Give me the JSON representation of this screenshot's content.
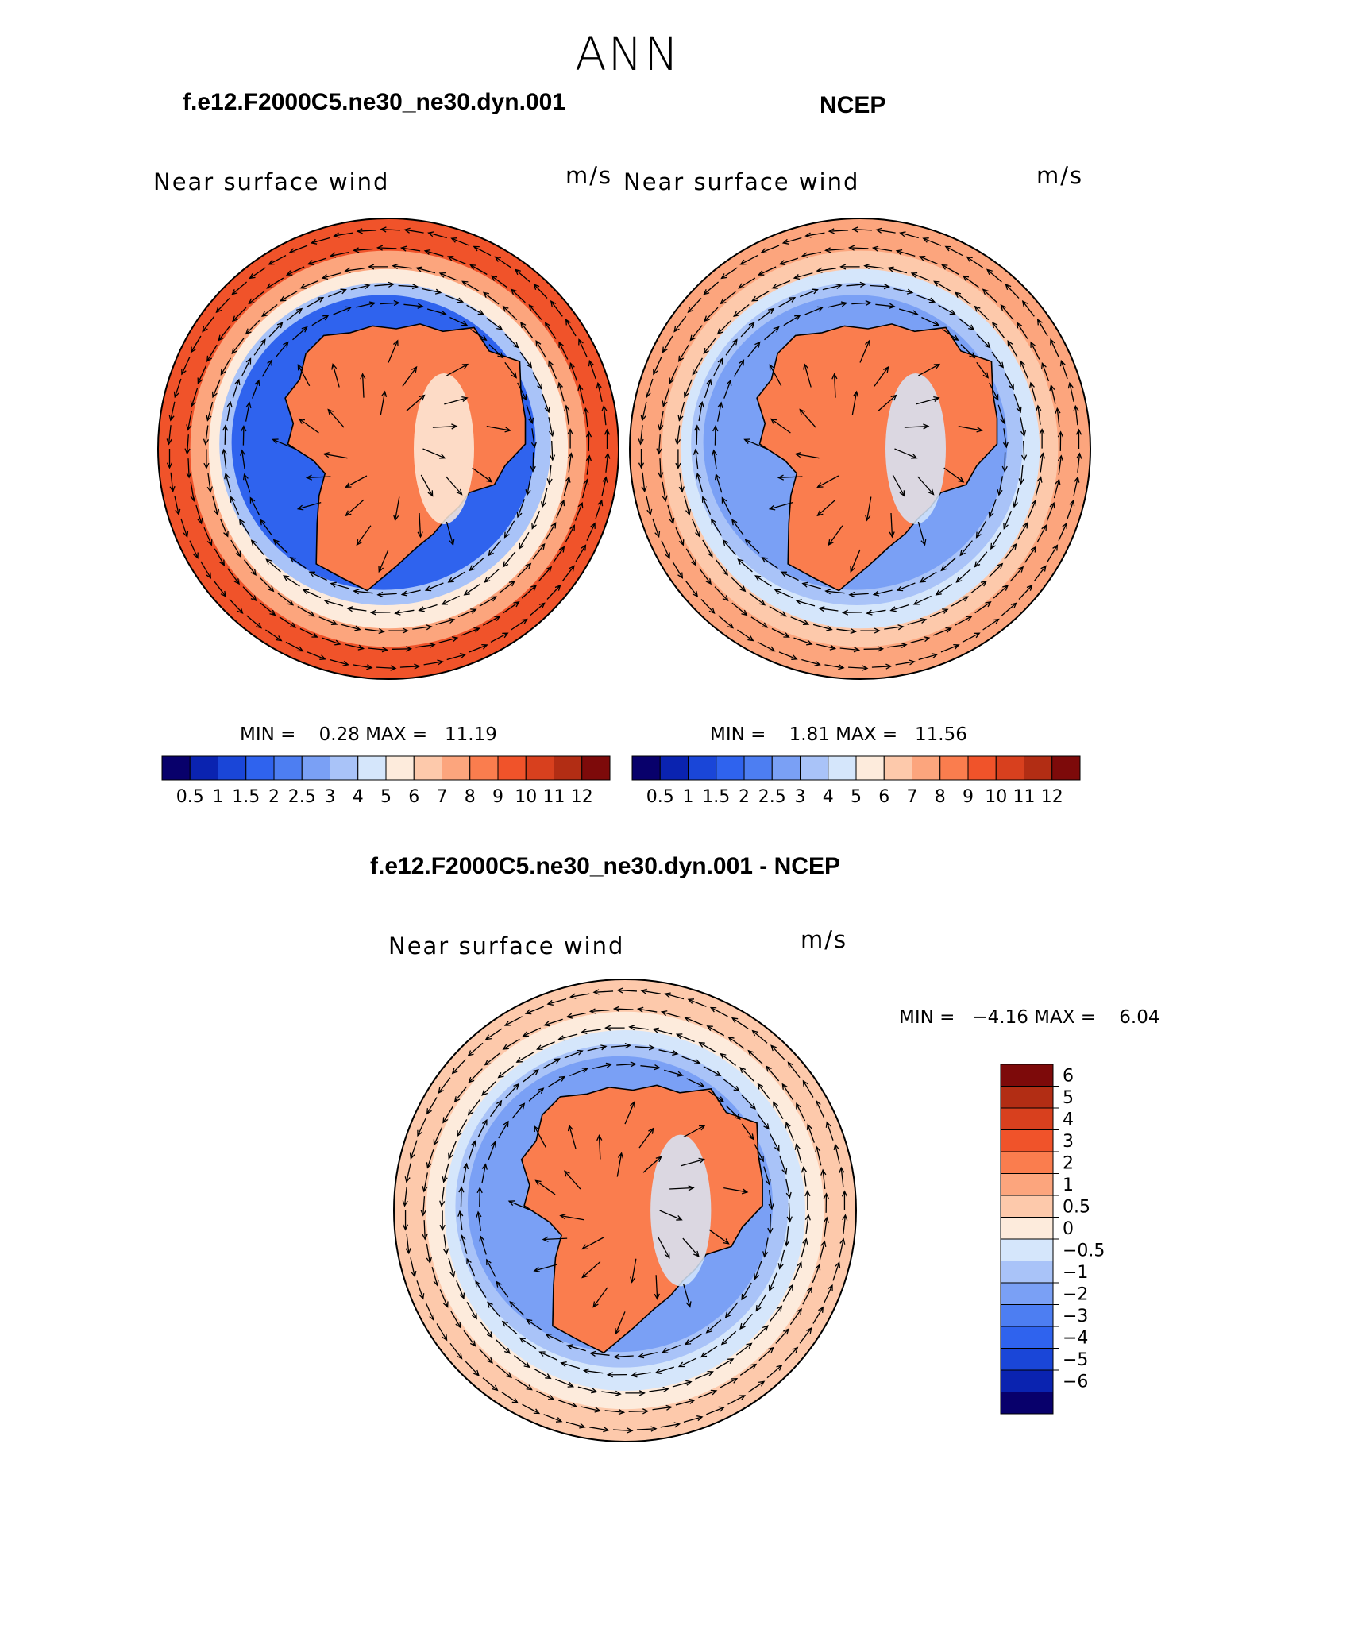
{
  "figure": {
    "title": "ANN"
  },
  "panels": [
    {
      "id": "model",
      "title": "f.e12.F2000C5.ne30_ne30.dyn.001",
      "left_label": "Near surface wind",
      "right_label": "m/s",
      "min_max": "MIN =    0.28 MAX =   11.19",
      "colorbar": {
        "orientation": "horizontal",
        "colors": [
          "#08006b",
          "#0a23b0",
          "#1a46d8",
          "#2f63ee",
          "#4d7ef2",
          "#7aa0f5",
          "#a9c3f8",
          "#d5e6fb",
          "#fdebdc",
          "#fdc9ab",
          "#fca57d",
          "#fa7d4e",
          "#f0532a",
          "#d8401e",
          "#b22d14",
          "#7d0a0a"
        ],
        "labels": [
          "0.5",
          "1",
          "1.5",
          "2",
          "2.5",
          "3",
          "4",
          "5",
          "6",
          "7",
          "8",
          "9",
          "10",
          "11",
          "12"
        ]
      }
    },
    {
      "id": "obs",
      "title": "NCEP",
      "left_label": "Near surface wind",
      "right_label": "m/s",
      "min_max": "MIN =    1.81 MAX =   11.56",
      "colorbar": {
        "orientation": "horizontal",
        "colors": [
          "#08006b",
          "#0a23b0",
          "#1a46d8",
          "#2f63ee",
          "#4d7ef2",
          "#7aa0f5",
          "#a9c3f8",
          "#d5e6fb",
          "#fdebdc",
          "#fdc9ab",
          "#fca57d",
          "#fa7d4e",
          "#f0532a",
          "#d8401e",
          "#b22d14",
          "#7d0a0a"
        ],
        "labels": [
          "0.5",
          "1",
          "1.5",
          "2",
          "2.5",
          "3",
          "4",
          "5",
          "6",
          "7",
          "8",
          "9",
          "10",
          "11",
          "12"
        ]
      }
    },
    {
      "id": "diff",
      "title": "f.e12.F2000C5.ne30_ne30.dyn.001 - NCEP",
      "left_label": "Near surface wind",
      "right_label": "m/s",
      "min_max": "MIN =   −4.16 MAX =    6.04",
      "colorbar": {
        "orientation": "vertical",
        "colors": [
          "#7d0a0a",
          "#b22d14",
          "#d8401e",
          "#f0532a",
          "#fa7d4e",
          "#fca57d",
          "#fdc9ab",
          "#fdebdc",
          "#d5e6fb",
          "#a9c3f8",
          "#7aa0f5",
          "#4d7ef2",
          "#2f63ee",
          "#1a46d8",
          "#0a23b0",
          "#08006b"
        ],
        "labels": [
          "6",
          "5",
          "4",
          "3",
          "2",
          "1",
          "0.5",
          "0",
          "−0.5",
          "−1",
          "−2",
          "−3",
          "−4",
          "−5",
          "−6"
        ]
      }
    }
  ],
  "map_style": {
    "model_colors": {
      "outer": "#f0532a",
      "ring1": "#fca57d",
      "ring2": "#fdebdc",
      "ring3": "#a9c3f8",
      "trough": "#2f63ee",
      "land": "#fa7d4e"
    },
    "obs_colors": {
      "outer": "#fca57d",
      "ring1": "#fdc9ab",
      "ring2": "#d5e6fb",
      "ring3": "#a9c3f8",
      "trough": "#7aa0f5",
      "land": "#fa7d4e"
    },
    "diff_colors": {
      "outer": "#fdc9ab",
      "ring1": "#fdebdc",
      "ring2": "#d5e6fb",
      "ring3": "#a9c3f8",
      "trough": "#7aa0f5",
      "land": "#fa7d4e"
    }
  }
}
